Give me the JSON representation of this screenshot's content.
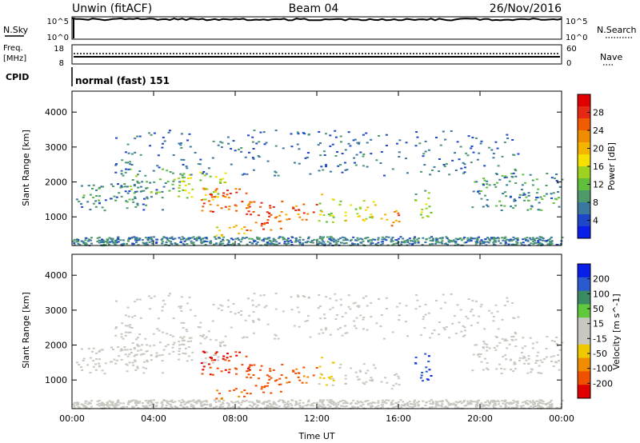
{
  "header": {
    "site": "Unwin (fitACF)",
    "beam": "Beam 04",
    "date": "26/Nov/2016"
  },
  "panels": {
    "nsky": {
      "label": "N.Sky",
      "ticks_left": [
        "10^5",
        "10^0"
      ],
      "ticks_right": [
        "10^5",
        "10^0"
      ],
      "right_label": "N.Search"
    },
    "freq": {
      "label_line1": "Freq.",
      "label_line2": "[MHz]",
      "ticks_left": [
        "18",
        "8"
      ],
      "ticks_right": [
        "60",
        "0"
      ],
      "right_label": "Nave"
    },
    "cpid": {
      "label": "CPID",
      "text": "normal (fast) 151"
    }
  },
  "axes": {
    "xlabel": "Time UT",
    "x_ticks": [
      "00:00",
      "04:00",
      "08:00",
      "12:00",
      "16:00",
      "20:00",
      "00:00"
    ],
    "ylabel": "Slant Range [km]",
    "y_ticks": [
      "1000",
      "2000",
      "3000",
      "4000"
    ]
  },
  "colorbars": {
    "power": {
      "label": "Power [dB]",
      "ticks": [
        "4",
        "8",
        "12",
        "16",
        "20",
        "24",
        "28"
      ],
      "colors": [
        "#0a1eea",
        "#1e46c8",
        "#3a78a0",
        "#4c9a6a",
        "#5fbf3c",
        "#9dd21e",
        "#f5e000",
        "#f5b400",
        "#f08c00",
        "#f05a00",
        "#e62814",
        "#e00000"
      ]
    },
    "velocity": {
      "label": "Velocity [m s^-1]",
      "ticks": [
        "200",
        "100",
        "50",
        "15",
        "-15",
        "-50",
        "-100",
        "-200"
      ],
      "colors": [
        "#0a1eea",
        "#2a5ad0",
        "#3a8a64",
        "#5fc83c",
        "#c8c8c0",
        "#c8c8c0",
        "#f0c800",
        "#f08c00",
        "#f05000",
        "#e00000"
      ]
    }
  },
  "chart_data": {
    "type": "heatmap",
    "title": "Beam 04",
    "xlabel": "Time UT",
    "ylabel": "Slant Range [km]",
    "x_range_hours": [
      0,
      24
    ],
    "y_range_km": [
      180,
      4600
    ],
    "y_ticks_km": [
      1000,
      2000,
      3000,
      4000
    ],
    "series": [
      {
        "name": "Power [dB]",
        "colorbar_ticks": [
          4,
          8,
          12,
          16,
          20,
          24,
          28
        ]
      },
      {
        "name": "Velocity [m s^-1]",
        "colorbar_ticks": [
          200,
          100,
          50,
          15,
          -15,
          -50,
          -100,
          -200
        ]
      }
    ],
    "scatter_regions": [
      {
        "t": [
          0.0,
          4.5
        ],
        "r": [
          1200,
          2000
        ],
        "power": 9,
        "velocity": 0
      },
      {
        "t": [
          2.5,
          5.5
        ],
        "r": [
          1700,
          2400
        ],
        "power": 12,
        "velocity": 0
      },
      {
        "t": [
          5.0,
          7.5
        ],
        "r": [
          1500,
          2300
        ],
        "power": 16,
        "velocity": 0
      },
      {
        "t": [
          6.3,
          8.8
        ],
        "r": [
          1150,
          1900
        ],
        "power": 26,
        "velocity": -200
      },
      {
        "t": [
          7.0,
          8.5
        ],
        "r": [
          450,
          800
        ],
        "power": 20,
        "velocity": -150
      },
      {
        "t": [
          8.5,
          10.3
        ],
        "r": [
          600,
          1500
        ],
        "power": 26,
        "velocity": -180
      },
      {
        "t": [
          10.3,
          12.0
        ],
        "r": [
          900,
          1400
        ],
        "power": 25,
        "velocity": -160
      },
      {
        "t": [
          12.0,
          12.8
        ],
        "r": [
          800,
          1700
        ],
        "power": 16,
        "velocity": -60
      },
      {
        "t": [
          13.0,
          15.0
        ],
        "r": [
          900,
          1500
        ],
        "power": 18,
        "velocity": 0
      },
      {
        "t": [
          15.0,
          16.0
        ],
        "r": [
          700,
          1200
        ],
        "power": 24,
        "velocity": 0
      },
      {
        "t": [
          16.7,
          17.6
        ],
        "r": [
          1000,
          1800
        ],
        "power": 14,
        "velocity": 200
      },
      {
        "t": [
          19.5,
          24.0
        ],
        "r": [
          1200,
          2300
        ],
        "power": 10,
        "velocity": 0
      }
    ]
  }
}
